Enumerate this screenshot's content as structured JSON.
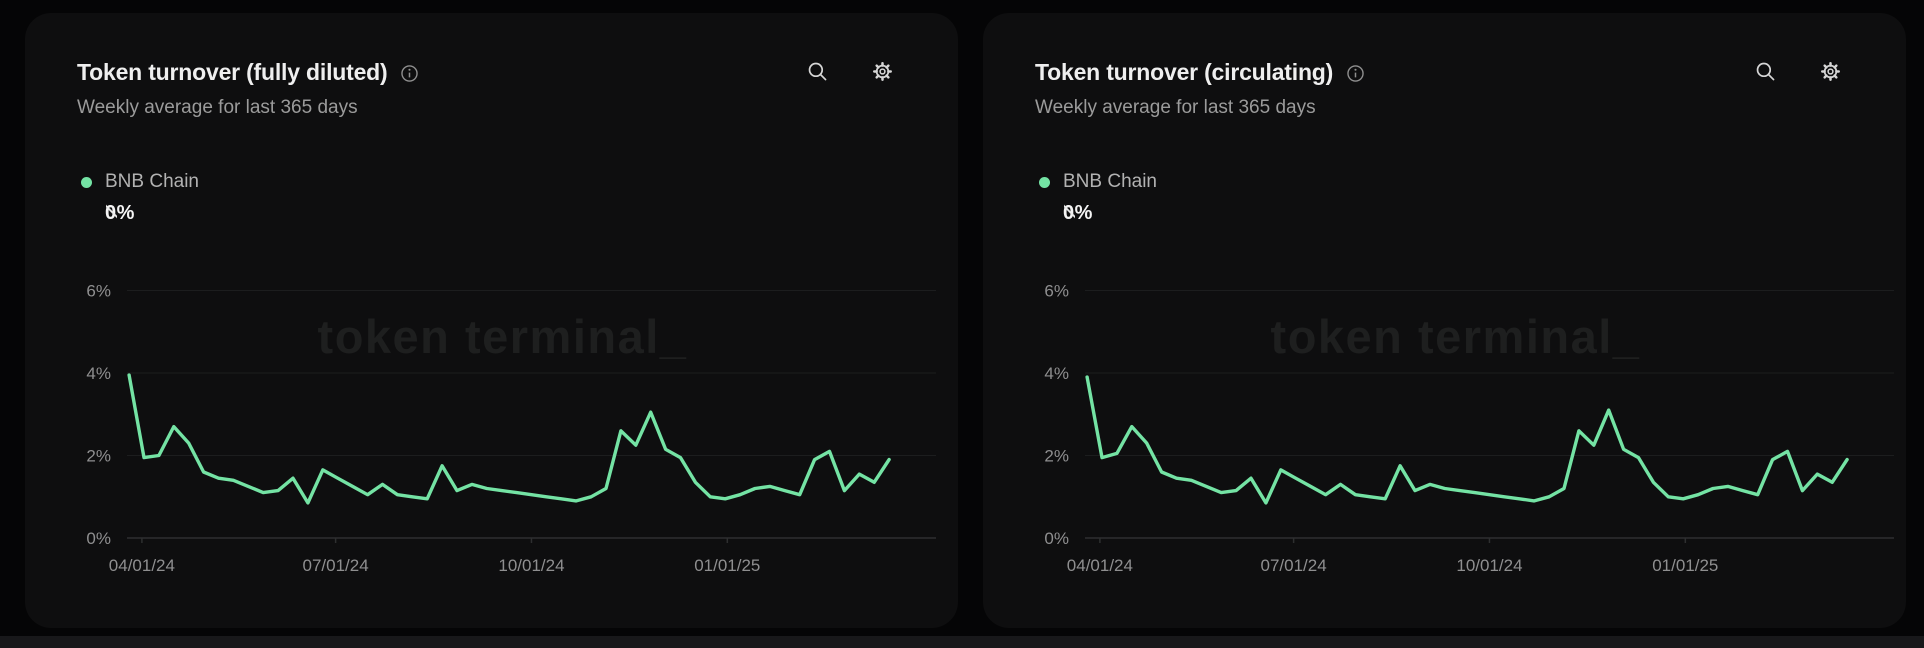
{
  "page": {
    "background": "#050506",
    "bottom_strip_color": "#18181a",
    "card_background": "#0e0e0f"
  },
  "watermark": "token terminal_",
  "icons": [
    "info-icon",
    "search-icon",
    "settings-icon"
  ],
  "accent_color": "#74e3a4",
  "cards": [
    {
      "title": "Token turnover (fully diluted)",
      "subtitle": "Weekly average for last 365 days",
      "legend": {
        "label": "BNB Chain",
        "value": "0%",
        "color": "#74e3a4"
      }
    },
    {
      "title": "Token turnover (circulating)",
      "subtitle": "Weekly average for last 365 days",
      "legend": {
        "label": "BNB Chain",
        "value": "0%",
        "color": "#74e3a4"
      }
    }
  ],
  "chart_data": [
    {
      "type": "line",
      "title": "Token turnover (fully diluted)",
      "subtitle": "Weekly average for last 365 days",
      "unit": "%",
      "grid": "horizontal",
      "legend_position": "top-left",
      "line_color": "#74e3a4",
      "x_tick_labels": [
        "04/01/24",
        "07/01/24",
        "10/01/24",
        "01/01/25"
      ],
      "x_tick_days": [
        7,
        98,
        190,
        282
      ],
      "x_range_days": [
        0,
        365
      ],
      "y_tick_labels": [
        "0%",
        "2%",
        "4%",
        "6%"
      ],
      "y_tick_values": [
        0,
        2,
        4,
        6
      ],
      "ylim": [
        0,
        6.5
      ],
      "series": [
        {
          "name": "BNB Chain",
          "cadence": "weekly",
          "values": [
            3.95,
            1.95,
            2.0,
            2.7,
            2.3,
            1.6,
            1.45,
            1.4,
            1.25,
            1.1,
            1.15,
            1.45,
            0.85,
            1.65,
            1.45,
            1.25,
            1.05,
            1.3,
            1.05,
            1.0,
            0.95,
            1.75,
            1.15,
            1.3,
            1.2,
            1.15,
            1.1,
            1.05,
            1.0,
            0.95,
            0.9,
            1.0,
            1.2,
            2.6,
            2.25,
            3.05,
            2.15,
            1.95,
            1.35,
            1.0,
            0.95,
            1.05,
            1.2,
            1.25,
            1.15,
            1.05,
            1.9,
            2.1,
            1.15,
            1.55,
            1.35,
            1.9
          ]
        }
      ]
    },
    {
      "type": "line",
      "title": "Token turnover (circulating)",
      "subtitle": "Weekly average for last 365 days",
      "unit": "%",
      "grid": "horizontal",
      "legend_position": "top-left",
      "line_color": "#74e3a4",
      "x_tick_labels": [
        "04/01/24",
        "07/01/24",
        "10/01/24",
        "01/01/25"
      ],
      "x_tick_days": [
        7,
        98,
        190,
        282
      ],
      "x_range_days": [
        0,
        365
      ],
      "y_tick_labels": [
        "0%",
        "2%",
        "4%",
        "6%"
      ],
      "y_tick_values": [
        0,
        2,
        4,
        6
      ],
      "ylim": [
        0,
        6.5
      ],
      "series": [
        {
          "name": "BNB Chain",
          "cadence": "weekly",
          "values": [
            3.9,
            1.95,
            2.05,
            2.7,
            2.3,
            1.6,
            1.45,
            1.4,
            1.25,
            1.1,
            1.15,
            1.45,
            0.85,
            1.65,
            1.45,
            1.25,
            1.05,
            1.3,
            1.05,
            1.0,
            0.95,
            1.75,
            1.15,
            1.3,
            1.2,
            1.15,
            1.1,
            1.05,
            1.0,
            0.95,
            0.9,
            1.0,
            1.2,
            2.6,
            2.25,
            3.1,
            2.15,
            1.95,
            1.35,
            1.0,
            0.95,
            1.05,
            1.2,
            1.25,
            1.15,
            1.05,
            1.9,
            2.1,
            1.15,
            1.55,
            1.35,
            1.9
          ]
        }
      ]
    }
  ]
}
